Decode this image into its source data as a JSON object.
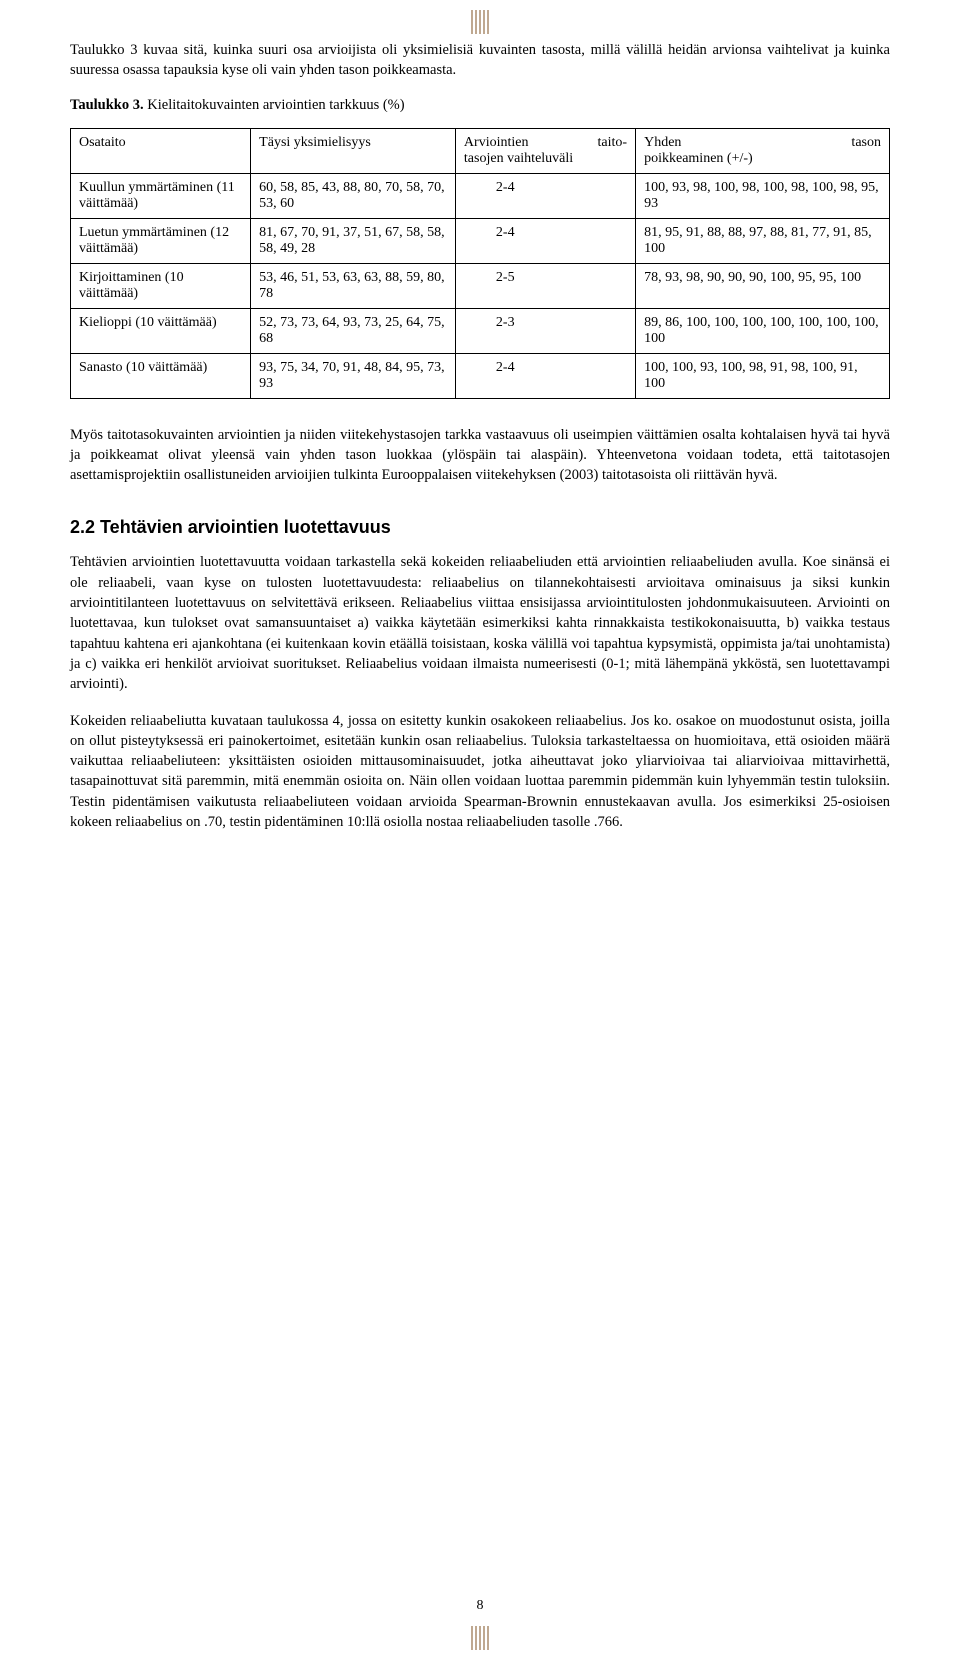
{
  "topMarkColor": "#bfa890",
  "intro_para": "Taulukko 3 kuvaa sitä, kuinka suuri osa arvioijista oli yksimielisiä kuvainten tasosta, millä välillä heidän arvionsa vaihtelivat ja kuinka suuressa osassa tapauksia kyse oli vain yhden tason poikkeamasta.",
  "table3_heading_bold": "Taulukko 3.",
  "table3_heading_rest": " Kielitaitokuvainten arviointien tarkkuus (%)",
  "table3": {
    "headers": {
      "osataito": "Osataito",
      "taysi": "Täysi yksimielisyys",
      "arvo": "Arviointien taito­tasojen vaihteluväli",
      "yhden": "Yhden tason poikkeaminen (+/-)"
    },
    "rows": [
      {
        "osataito": "Kuullun ymmärtäminen (11 väittämää)",
        "taysi": "60, 58, 85, 43, 88, 80, 70, 58, 70, 53, 60",
        "arvo": "2-4",
        "yhden": "100, 93, 98, 100, 98, 100, 98, 100, 98, 95, 93"
      },
      {
        "osataito": "Luetun ymmärtäminen (12 väittämää)",
        "taysi": "81, 67, 70, 91, 37, 51, 67, 58, 58, 58, 49, 28",
        "arvo": "2-4",
        "yhden": "81, 95, 91, 88, 88, 97, 88, 81, 77, 91, 85, 100"
      },
      {
        "osataito": "Kirjoittaminen (10 väittämää)",
        "taysi": "53, 46, 51, 53, 63, 63, 88, 59, 80, 78",
        "arvo": "2-5",
        "yhden": "78, 93, 98, 90, 90, 90, 100, 95, 95, 100"
      },
      {
        "osataito": "Kielioppi (10 väittämää)",
        "taysi": "52, 73, 73, 64, 93, 73, 25, 64, 75, 68",
        "arvo": "2-3",
        "yhden": "89, 86, 100, 100, 100, 100, 100, 100, 100, 100"
      },
      {
        "osataito": "Sanasto (10 väittämää)",
        "taysi": "93, 75, 34, 70, 91, 48, 84, 95, 73, 93",
        "arvo": "2-4",
        "yhden": "100, 100, 93, 100, 98, 91, 98, 100, 91, 100"
      }
    ]
  },
  "after_table_para1": "Myös taitotasokuvainten arviointien ja niiden viitekehystasojen tarkka vastaavuus oli useimpien väittämien osalta kohtalaisen hyvä tai hyvä ja poikkeamat olivat yleensä vain yhden tason luokkaa (ylöspäin tai alaspäin). Yhteenvetona voidaan todeta, että taitotasojen asettamisprojektiin osallistuneiden arvioijien tulkinta Eurooppalaisen viitekehyksen (2003) taitotasoista oli riittävän hyvä.",
  "section22_title": "2.2 Tehtävien arviointien luotettavuus",
  "section22_para1": "Tehtävien arviointien luotettavuutta voidaan tarkastella sekä kokeiden reliaabeliuden että arviointien reliaabeliuden avulla. Koe sinänsä ei ole reliaabeli, vaan kyse on tulosten luotettavuudesta: reliaabelius on tilannekohtaisesti arvioitava ominaisuus ja siksi kunkin arviointitilanteen luotettavuus on selvitettävä erikseen. Reliaabelius viittaa ensisijassa arviointitulosten johdonmukaisuuteen. Arviointi on luotettavaa, kun tulokset ovat samansuuntaiset a) vaikka käytetään esimerkiksi kahta rinnakkaista testikokonaisuutta, b) vaikka testaus tapahtuu kahtena eri ajankohtana (ei kuitenkaan kovin etäällä toisistaan, koska välillä voi tapahtua kypsymistä, oppimista ja/tai unohtamista) ja c) vaikka eri henkilöt arvioivat suoritukset. Reliaabelius voidaan ilmaista numeerisesti (0-1; mitä lähempänä ykköstä, sen luotettavampi arviointi).",
  "section22_para2": "Kokeiden reliaabeliutta kuvataan taulukossa 4, jossa on esitetty kunkin osakokeen reliaabelius. Jos ko. osakoe on muodostunut osista, joilla on ollut pisteytyksessä eri painokertoimet, esitetään kunkin osan reliaabelius. Tuloksia tarkasteltaessa on huomioitava, että osioiden määrä vaikuttaa reliaabeliuteen: yksittäisten osioiden mittausominaisuudet, jotka aiheuttavat joko yliarvioivaa tai aliarvioivaa mittavirhettä, tasapainottuvat sitä paremmin, mitä enemmän osioita on. Näin ollen voidaan luottaa paremmin pidemmän kuin lyhyemmän testin tuloksiin. Testin pidentämisen vaikutusta reliaabeliuteen voidaan arvioida Spearman-Brownin ennustekaavan avulla. Jos esimerkiksi 25-osioisen kokeen reliaabelius on .70, testin pidentäminen 10:llä osiolla nostaa reliaabeliuden tasolle .766.",
  "page_number": "8"
}
